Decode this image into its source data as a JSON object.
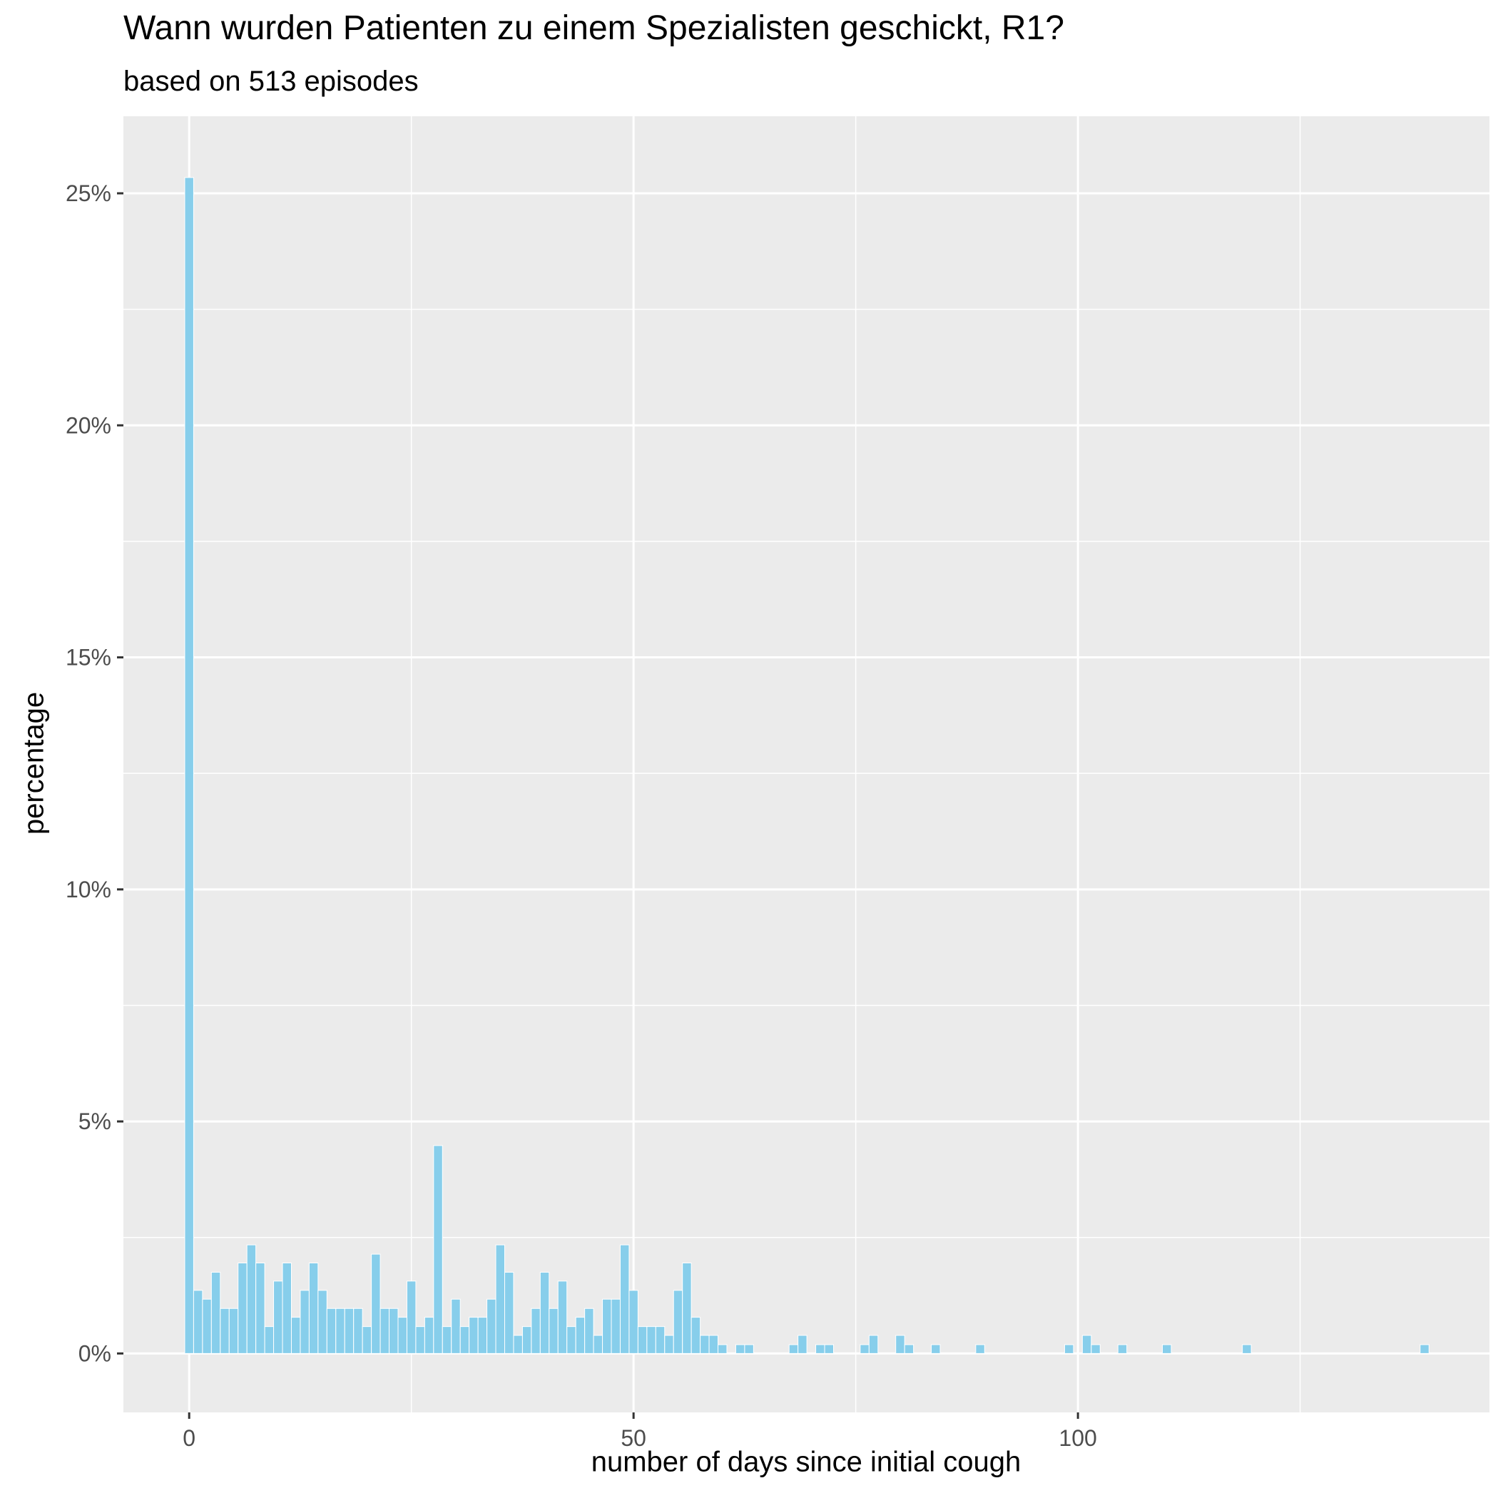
{
  "chart_data": {
    "type": "bar",
    "title": "Wann wurden Patienten zu einem Spezialisten geschickt, R1?",
    "subtitle": "based on 513 episodes",
    "xlabel": "number of days since initial cough",
    "ylabel": "percentage",
    "x_ticks": [
      "0",
      "50",
      "100"
    ],
    "y_ticks": [
      "0%",
      "5%",
      "10%",
      "15%",
      "20%",
      "25%"
    ],
    "xlim": [
      -7.4,
      146.3
    ],
    "ylim": [
      -1.27,
      26.66
    ],
    "grid": true,
    "bar_color": "#87CEEB",
    "panel_color": "#EBEBEB",
    "series": [
      {
        "x": [
          0,
          1,
          2,
          3,
          4,
          5,
          6,
          7,
          8,
          9,
          10,
          11,
          12,
          13,
          14,
          15,
          16,
          17,
          18,
          19,
          20,
          21,
          22,
          23,
          24,
          25,
          26,
          27,
          28,
          29,
          30,
          31,
          32,
          33,
          34,
          35,
          36,
          37,
          38,
          39,
          40,
          41,
          42,
          43,
          44,
          45,
          46,
          47,
          48,
          49,
          50,
          51,
          52,
          53,
          54,
          55,
          56,
          57,
          58,
          59,
          60,
          62,
          63,
          68,
          69,
          71,
          72,
          76,
          77,
          80,
          81,
          84,
          89,
          99,
          101,
          102,
          105,
          110,
          119,
          139
        ],
        "values": [
          25.34,
          1.36,
          1.17,
          1.75,
          0.97,
          0.97,
          1.95,
          2.34,
          1.95,
          0.58,
          1.56,
          1.95,
          0.78,
          1.36,
          1.95,
          1.36,
          0.97,
          0.97,
          0.97,
          0.97,
          0.58,
          2.14,
          0.97,
          0.97,
          0.78,
          1.56,
          0.58,
          0.78,
          4.48,
          0.58,
          1.17,
          0.58,
          0.78,
          0.78,
          1.17,
          2.34,
          1.75,
          0.39,
          0.58,
          0.97,
          1.75,
          0.97,
          1.56,
          0.58,
          0.78,
          0.97,
          0.39,
          1.17,
          1.17,
          2.34,
          1.36,
          0.58,
          0.58,
          0.58,
          0.39,
          1.36,
          1.95,
          0.78,
          0.39,
          0.39,
          0.19,
          0.19,
          0.19,
          0.19,
          0.39,
          0.19,
          0.19,
          0.19,
          0.39,
          0.39,
          0.19,
          0.19,
          0.19,
          0.19,
          0.39,
          0.19,
          0.19,
          0.19,
          0.19,
          0.19
        ]
      }
    ]
  }
}
